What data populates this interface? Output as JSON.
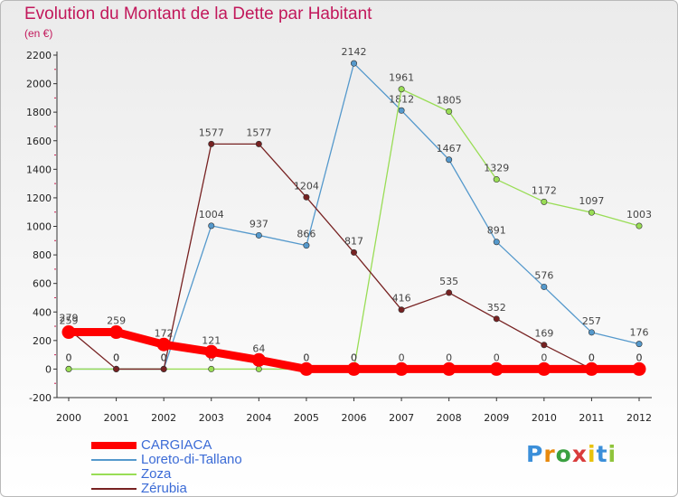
{
  "title": "Evolution du Montant de la Dette par Habitant",
  "subtitle": "(en €)",
  "logo": {
    "letters": [
      "P",
      "r",
      "o",
      "x",
      "i",
      "t",
      "i"
    ],
    "colors": [
      "#3b8fd9",
      "#e8890c",
      "#3aa040",
      "#d93b3b",
      "#e8c20c",
      "#3b8fd9",
      "#8fc43b"
    ]
  },
  "chart_data": {
    "type": "line",
    "x": [
      "2000",
      "2001",
      "2002",
      "2003",
      "2004",
      "2005",
      "2006",
      "2007",
      "2008",
      "2009",
      "2010",
      "2011",
      "2012"
    ],
    "ylim": [
      -200,
      2200
    ],
    "yticks": [
      -200,
      0,
      200,
      400,
      600,
      800,
      1000,
      1200,
      1400,
      1600,
      1800,
      2000,
      2200
    ],
    "grid": false,
    "legend_position": "bottom-left",
    "series": [
      {
        "name": "CARGIACA",
        "color": "#ff0000",
        "values": [
          259,
          259,
          172,
          121,
          64,
          0,
          0,
          0,
          0,
          0,
          0,
          0,
          0
        ]
      },
      {
        "name": "Loreto-di-Tallano",
        "color": "#5599cc",
        "values": [
          0,
          0,
          0,
          1004,
          937,
          866,
          2142,
          1812,
          1467,
          891,
          576,
          257,
          176
        ]
      },
      {
        "name": "Zoza",
        "color": "#99dd55",
        "values": [
          0,
          0,
          0,
          0,
          0,
          0,
          0,
          1961,
          1805,
          1329,
          1172,
          1097,
          1003
        ]
      },
      {
        "name": "Zérubia",
        "color": "#772222",
        "values": [
          279,
          0,
          0,
          1577,
          1577,
          1204,
          817,
          416,
          535,
          352,
          169,
          0,
          0
        ]
      }
    ]
  }
}
